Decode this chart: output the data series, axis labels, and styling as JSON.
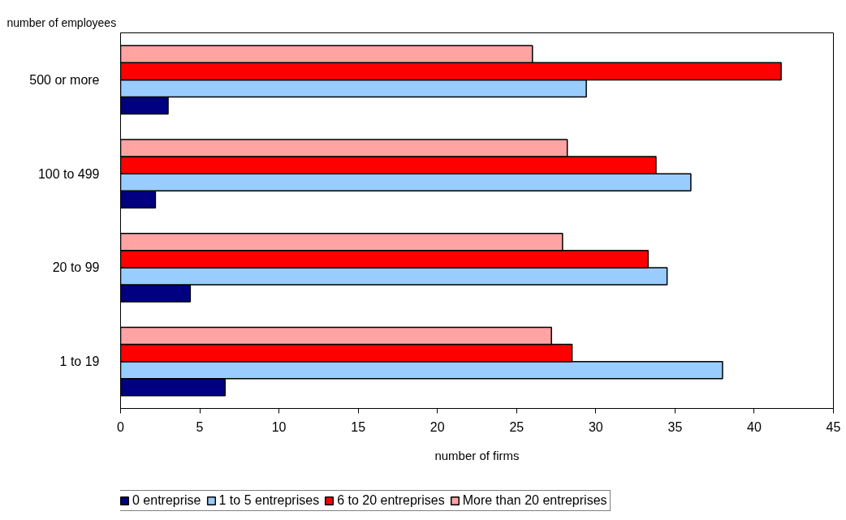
{
  "chart_data": {
    "type": "bar",
    "orientation": "horizontal",
    "ylabel": "number of employees",
    "xlabel": "number of firms",
    "categories": [
      "500 or more",
      "100 to 499",
      "20 to 99",
      "1 to 19"
    ],
    "series": [
      {
        "name": "0 entreprise",
        "color": "#000080",
        "values": [
          3.0,
          2.2,
          4.4,
          6.6
        ]
      },
      {
        "name": "1 to 5 entreprises",
        "color": "#99ccff",
        "values": [
          29.4,
          36.0,
          34.5,
          38.0
        ]
      },
      {
        "name": "6 to 20 entreprises",
        "color": "#ff0000",
        "values": [
          41.7,
          33.8,
          33.3,
          28.5
        ]
      },
      {
        "name": "More than 20 entreprises",
        "color": "#ffa3a3",
        "values": [
          26.0,
          28.2,
          27.9,
          27.2
        ]
      }
    ],
    "xlim": [
      0,
      45
    ],
    "xticks": [
      0,
      5,
      10,
      15,
      20,
      25,
      30,
      35,
      40,
      45
    ],
    "grid": false,
    "legend": "bottom"
  }
}
